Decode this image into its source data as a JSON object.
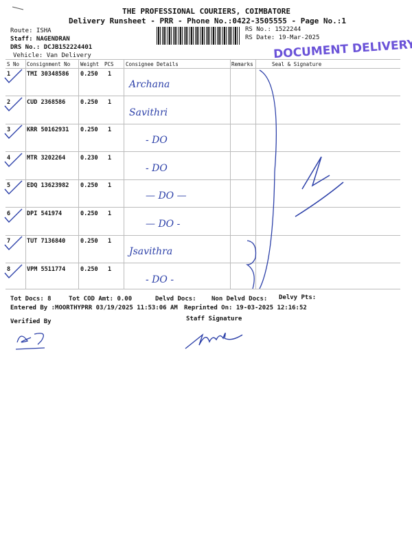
{
  "header": {
    "company": "THE PROFESSIONAL COURIERS, COIMBATORE",
    "subtitle": "Delivery Runsheet - PRR - Phone No.:0422-3505555 - Page No.:1",
    "route": "Route: ISHA",
    "staff": "Staff: NAGENDRAN",
    "drs_no": "DRS No.: DCJB152224401",
    "vehicle": "Vehicle: Van Delivery",
    "rs_no": "RS No.: 1522244",
    "rs_date": "RS Date: 19-Mar-2025",
    "stamp": "DOCUMENT DELIVERY"
  },
  "table": {
    "columns": [
      "S No",
      "Consignment No",
      "Weight",
      "PCS",
      "Consignee Details",
      "Remarks",
      "Seal & Signature"
    ],
    "rows": [
      {
        "sno": "1",
        "cn": "TMI 30348586",
        "weight": "0.250",
        "pcs": "1",
        "consignee": "Archana"
      },
      {
        "sno": "2",
        "cn": "CUD 2368586",
        "weight": "0.250",
        "pcs": "1",
        "consignee": "Savithri"
      },
      {
        "sno": "3",
        "cn": "KRR 50162931",
        "weight": "0.250",
        "pcs": "1",
        "consignee": "- DO"
      },
      {
        "sno": "4",
        "cn": "MTR 3202264",
        "weight": "0.230",
        "pcs": "1",
        "consignee": "- DO"
      },
      {
        "sno": "5",
        "cn": "EDQ 13623982",
        "weight": "0.250",
        "pcs": "1",
        "consignee": "— DO —"
      },
      {
        "sno": "6",
        "cn": "DPI 541974",
        "weight": "0.250",
        "pcs": "1",
        "consignee": "— DO -"
      },
      {
        "sno": "7",
        "cn": "TUT 7136840",
        "weight": "0.250",
        "pcs": "1",
        "consignee": "Jsavithra"
      },
      {
        "sno": "8",
        "cn": "VPM 5511774",
        "weight": "0.250",
        "pcs": "1",
        "consignee": "- DO -"
      }
    ]
  },
  "footer": {
    "tot_docs": "Tot Docs:   8",
    "tot_cod": "Tot COD Amt:    0.00",
    "delvd": "Delvd Docs:",
    "non_delvd": "Non Delvd Docs:",
    "delvy_pts": "Delvy Pts:",
    "entered_by": "Entered By :MOORTHYPRR 03/19/2025 11:53:06 AM",
    "reprinted": "Reprinted On: 19-03-2025 12:16:52",
    "verified_by": "Verified By",
    "staff_signature": "Staff Signature"
  },
  "colors": {
    "ink": "#2b3fa8",
    "stamp": "#6a52d8"
  }
}
